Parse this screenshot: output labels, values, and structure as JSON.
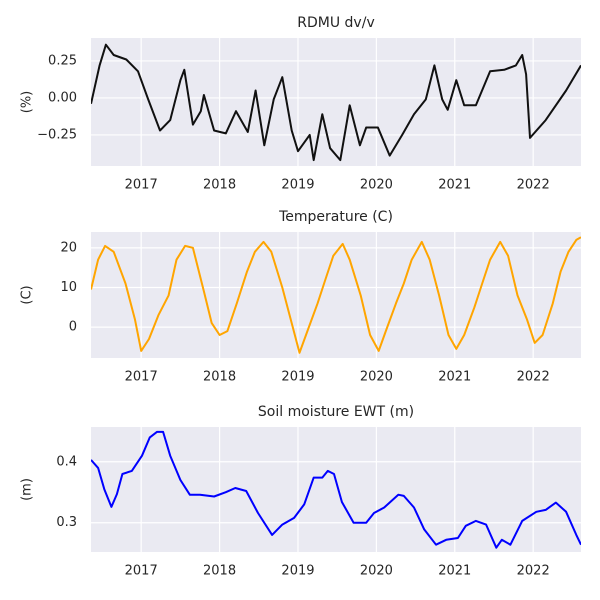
{
  "chart_data": [
    {
      "type": "line",
      "title": "RDMU dv/v",
      "ylabel": "(%)",
      "color": "#111111",
      "xlim": [
        2016.36,
        2022.61
      ],
      "xticks": [
        2017,
        2018,
        2019,
        2020,
        2021,
        2022
      ],
      "ylim": [
        -0.46,
        0.405
      ],
      "yticks": [
        {
          "value": -0.25,
          "label": "−0.25"
        },
        {
          "value": 0,
          "label": "0.00"
        },
        {
          "value": 0.25,
          "label": "0.25"
        }
      ],
      "grid": true,
      "x": [
        2016.36,
        2016.47,
        2016.55,
        2016.65,
        2016.81,
        2016.96,
        2017.09,
        2017.24,
        2017.37,
        2017.5,
        2017.55,
        2017.66,
        2017.76,
        2017.8,
        2017.93,
        2018.08,
        2018.21,
        2018.36,
        2018.46,
        2018.57,
        2018.69,
        2018.8,
        2018.92,
        2019.0,
        2019.15,
        2019.2,
        2019.31,
        2019.41,
        2019.54,
        2019.66,
        2019.79,
        2019.87,
        2020.02,
        2020.17,
        2020.33,
        2020.48,
        2020.63,
        2020.74,
        2020.84,
        2020.91,
        2021.02,
        2021.12,
        2021.27,
        2021.45,
        2021.63,
        2021.78,
        2021.86,
        2021.91,
        2021.96,
        2022.16,
        2022.42,
        2022.61
      ],
      "values": [
        -0.04,
        0.22,
        0.36,
        0.29,
        0.26,
        0.18,
        -0.01,
        -0.22,
        -0.15,
        0.12,
        0.19,
        -0.18,
        -0.09,
        0.02,
        -0.22,
        -0.24,
        -0.09,
        -0.23,
        0.05,
        -0.32,
        -0.01,
        0.14,
        -0.22,
        -0.36,
        -0.25,
        -0.42,
        -0.11,
        -0.34,
        -0.42,
        -0.05,
        -0.32,
        -0.2,
        -0.2,
        -0.39,
        -0.25,
        -0.11,
        -0.01,
        0.22,
        -0.01,
        -0.08,
        0.12,
        -0.05,
        -0.05,
        0.18,
        0.19,
        0.22,
        0.29,
        0.16,
        -0.27,
        -0.15,
        0.05,
        0.22
      ]
    },
    {
      "type": "line",
      "title": "Temperature (C)",
      "ylabel": "(C)",
      "color": "#ffa500",
      "xlim": [
        2016.36,
        2022.61
      ],
      "xticks": [
        2017,
        2018,
        2019,
        2020,
        2021,
        2022
      ],
      "ylim": [
        -7.8,
        24
      ],
      "yticks": [
        0,
        10,
        20
      ],
      "grid": true,
      "x": [
        2016.36,
        2016.45,
        2016.54,
        2016.65,
        2016.8,
        2016.92,
        2017.0,
        2017.1,
        2017.22,
        2017.35,
        2017.45,
        2017.56,
        2017.66,
        2017.8,
        2017.9,
        2018.0,
        2018.1,
        2018.22,
        2018.35,
        2018.45,
        2018.56,
        2018.66,
        2018.8,
        2018.92,
        2019.02,
        2019.12,
        2019.25,
        2019.35,
        2019.45,
        2019.57,
        2019.66,
        2019.8,
        2019.92,
        2020.03,
        2020.12,
        2020.25,
        2020.35,
        2020.45,
        2020.58,
        2020.68,
        2020.8,
        2020.92,
        2021.02,
        2021.12,
        2021.25,
        2021.35,
        2021.45,
        2021.58,
        2021.68,
        2021.8,
        2021.92,
        2022.02,
        2022.12,
        2022.25,
        2022.35,
        2022.45,
        2022.55,
        2022.61
      ],
      "values": [
        9.5,
        17,
        20.5,
        19,
        11,
        2,
        -6,
        -3,
        3,
        8,
        17,
        20.5,
        20,
        9,
        1,
        -2,
        -1,
        6,
        14,
        19,
        21.5,
        19,
        10,
        1,
        -6.5,
        -1,
        6,
        12,
        18,
        21,
        17,
        8,
        -2,
        -6,
        -1,
        6,
        11,
        17,
        21.5,
        17,
        8,
        -2,
        -5.5,
        -2,
        5,
        11,
        17,
        21.5,
        18,
        8,
        2,
        -4,
        -2,
        6,
        14,
        19,
        22,
        22.7
      ]
    },
    {
      "type": "line",
      "title": "Soil moisture EWT (m)",
      "ylabel": "(m)",
      "color": "#0000ff",
      "xlim": [
        2016.36,
        2022.61
      ],
      "xticks": [
        2017,
        2018,
        2019,
        2020,
        2021,
        2022
      ],
      "ylim": [
        0.252,
        0.457
      ],
      "yticks": [
        0.3,
        0.4
      ],
      "grid": true,
      "x": [
        2016.36,
        2016.45,
        2016.53,
        2016.62,
        2016.69,
        2016.76,
        2016.88,
        2017.01,
        2017.11,
        2017.2,
        2017.28,
        2017.37,
        2017.5,
        2017.62,
        2017.75,
        2017.93,
        2018.08,
        2018.2,
        2018.34,
        2018.49,
        2018.67,
        2018.8,
        2018.95,
        2019.08,
        2019.2,
        2019.31,
        2019.38,
        2019.46,
        2019.56,
        2019.71,
        2019.87,
        2019.97,
        2020.1,
        2020.28,
        2020.35,
        2020.48,
        2020.61,
        2020.76,
        2020.89,
        2021.04,
        2021.14,
        2021.27,
        2021.4,
        2021.53,
        2021.6,
        2021.71,
        2021.86,
        2022.04,
        2022.16,
        2022.29,
        2022.42,
        2022.55,
        2022.61
      ],
      "values": [
        0.403,
        0.39,
        0.355,
        0.326,
        0.347,
        0.38,
        0.385,
        0.41,
        0.44,
        0.449,
        0.449,
        0.41,
        0.37,
        0.346,
        0.346,
        0.343,
        0.35,
        0.357,
        0.352,
        0.316,
        0.28,
        0.297,
        0.308,
        0.33,
        0.374,
        0.374,
        0.385,
        0.38,
        0.334,
        0.3,
        0.3,
        0.316,
        0.325,
        0.346,
        0.344,
        0.325,
        0.289,
        0.264,
        0.272,
        0.275,
        0.295,
        0.303,
        0.297,
        0.259,
        0.272,
        0.264,
        0.303,
        0.318,
        0.321,
        0.333,
        0.318,
        0.28,
        0.264
      ]
    }
  ]
}
